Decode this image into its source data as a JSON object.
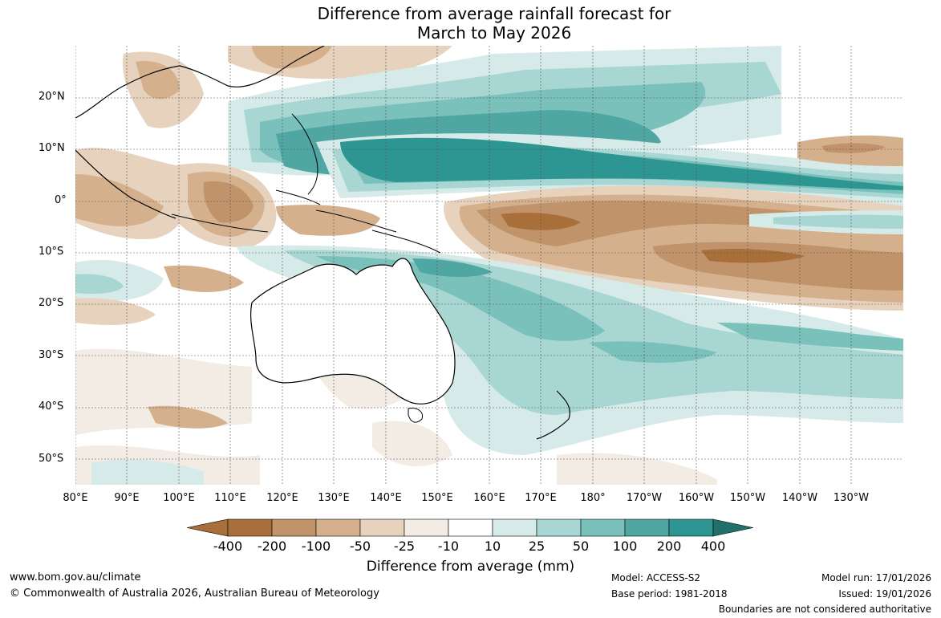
{
  "title_line1": "Difference from average rainfall forecast for",
  "title_line2": "March to May 2026",
  "lat_labels": [
    "20°N",
    "10°N",
    "0°",
    "10°S",
    "20°S",
    "30°S",
    "40°S",
    "50°S"
  ],
  "lon_labels": [
    "80°E",
    "90°E",
    "100°E",
    "110°E",
    "120°E",
    "130°E",
    "140°E",
    "150°E",
    "160°E",
    "170°E",
    "180°",
    "170°W",
    "160°W",
    "150°W",
    "140°W",
    "130°W"
  ],
  "colorbar": {
    "labels": [
      "-400",
      "-200",
      "-100",
      "-50",
      "-25",
      "-10",
      "10",
      "25",
      "50",
      "100",
      "200",
      "400"
    ],
    "colors": [
      "#a96f3b",
      "#c0936a",
      "#d4b08d",
      "#e6d2bd",
      "#f3ece5",
      "#ffffff",
      "#d6ebe9",
      "#a8d6d2",
      "#7ac0bb",
      "#4fa6a3",
      "#2e9692",
      "#226f6c"
    ],
    "title": "Difference from average (mm)"
  },
  "footer": {
    "url": "www.bom.gov.au/climate",
    "copyright": "© Commonwealth of Australia 2026, Australian Bureau of Meteorology",
    "model": "Model: ACCESS-S2",
    "base_period": "Base period: 1981-2018",
    "model_run": "Model run: 17/01/2026",
    "issued": "Issued: 19/01/2026",
    "disclaimer": "Boundaries are not considered authoritative"
  }
}
